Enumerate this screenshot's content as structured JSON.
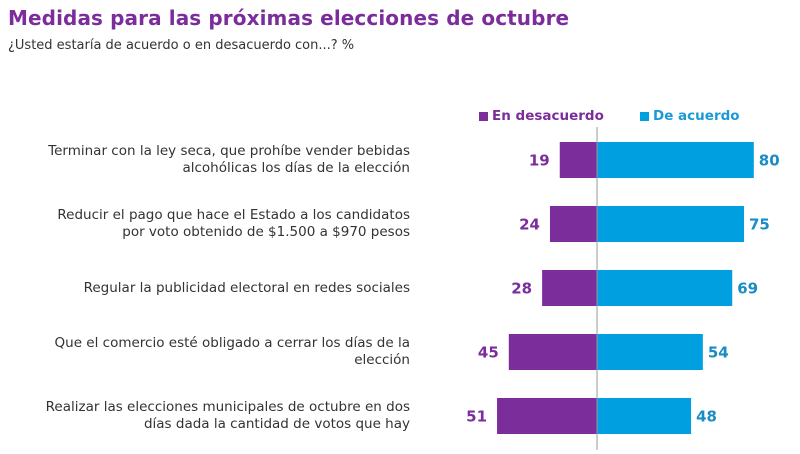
{
  "header": {
    "title": "Medidas para las próximas elecciones de octubre",
    "subtitle": "¿Usted estaría de acuerdo o en desacuerdo con...? %"
  },
  "colors": {
    "disagree": "#7b2d9b",
    "agree": "#009fdf",
    "agree_label": "#1a8cc4",
    "axis": "#999999"
  },
  "chart_data": {
    "type": "bar",
    "orientation": "diverging-horizontal",
    "title": "Medidas para las próximas elecciones de octubre",
    "subtitle": "¿Usted estaría de acuerdo o en desacuerdo con...? %",
    "xlabel": "",
    "ylabel": "",
    "unit": "%",
    "legend_position": "top-right",
    "legend": [
      "En desacuerdo",
      "De acuerdo"
    ],
    "categories": [
      [
        "Terminar con la ley seca, que prohíbe vender bebidas",
        "alcohólicas los días de la elección"
      ],
      [
        "Reducir el pago que hace el Estado a los candidatos",
        "por voto obtenido de $1.500 a $970 pesos"
      ],
      [
        "Regular la publicidad electoral en redes sociales"
      ],
      [
        "Que el comercio esté obligado a cerrar los días de la",
        "elección"
      ],
      [
        "Realizar las elecciones municipales de octubre en dos",
        "días dada la cantidad de votos que hay"
      ]
    ],
    "series": [
      {
        "name": "En desacuerdo",
        "values": [
          19,
          24,
          28,
          45,
          51
        ]
      },
      {
        "name": "De acuerdo",
        "values": [
          80,
          75,
          69,
          54,
          48
        ]
      }
    ],
    "xlim": [
      -100,
      100
    ],
    "grid": false
  }
}
